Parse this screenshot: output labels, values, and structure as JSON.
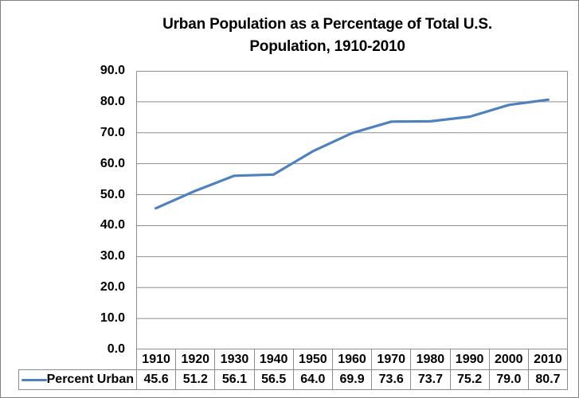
{
  "chart_data": {
    "type": "line",
    "title": "Urban Population as a Percentage of Total U.S. Population, 1910-2010",
    "title_line1": "Urban Population as a Percentage of Total U.S.",
    "title_line2": "Population, 1910-2010",
    "categories": [
      "1910",
      "1920",
      "1930",
      "1940",
      "1950",
      "1960",
      "1970",
      "1980",
      "1990",
      "2000",
      "2010"
    ],
    "series": [
      {
        "name": "Percent Urban",
        "color": "#4F81BD",
        "values": [
          45.6,
          51.2,
          56.1,
          56.5,
          64.0,
          69.9,
          73.6,
          73.7,
          75.2,
          79.0,
          80.7
        ]
      }
    ],
    "values_display": [
      "45.6",
      "51.2",
      "56.1",
      "56.5",
      "64.0",
      "69.9",
      "73.6",
      "73.7",
      "75.2",
      "79.0",
      "80.7"
    ],
    "xlabel": "",
    "ylabel": "",
    "ylim": [
      0,
      90
    ],
    "y_ticks": [
      "90.0",
      "80.0",
      "70.0",
      "60.0",
      "50.0",
      "40.0",
      "30.0",
      "20.0",
      "10.0",
      "0.0"
    ],
    "grid": "horizontal",
    "legend_position": "data-table-left",
    "colors": {
      "line": "#4F81BD",
      "gridline": "#8E8E8E",
      "table_border": "#8C8C8C",
      "outer_border": "#808080",
      "text": "#000000",
      "background": "#FFFFFF"
    }
  }
}
